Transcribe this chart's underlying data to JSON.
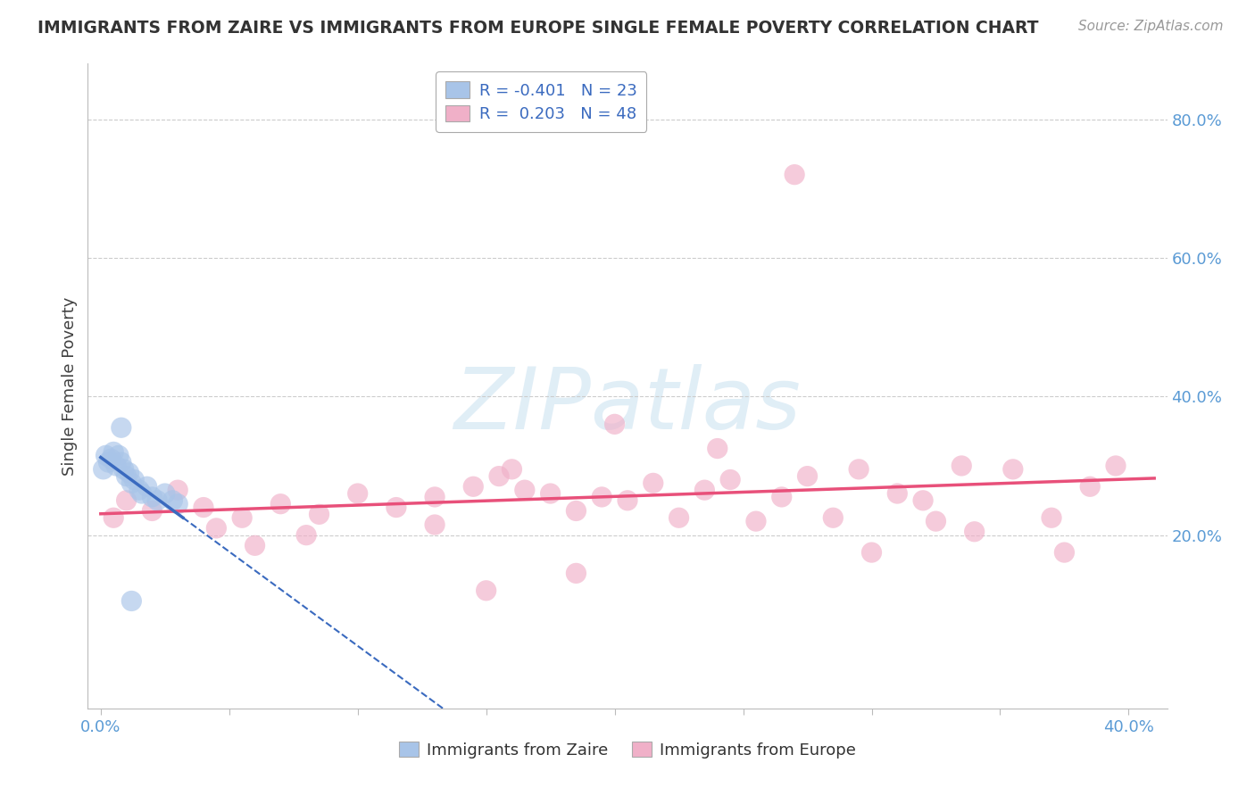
{
  "title": "IMMIGRANTS FROM ZAIRE VS IMMIGRANTS FROM EUROPE SINGLE FEMALE POVERTY CORRELATION CHART",
  "source": "Source: ZipAtlas.com",
  "ylabel": "Single Female Poverty",
  "ytick_labels": [
    "20.0%",
    "40.0%",
    "60.0%",
    "80.0%"
  ],
  "ytick_values": [
    0.2,
    0.4,
    0.6,
    0.8
  ],
  "xlim": [
    0.0,
    0.4
  ],
  "ylim": [
    0.0,
    0.88
  ],
  "zaire_color": "#a8c4e8",
  "europe_color": "#f0b0c8",
  "zaire_line_color": "#3a6abf",
  "europe_line_color": "#e8507a",
  "background_color": "#ffffff",
  "grid_color": "#cccccc",
  "zaire_x": [
    0.001,
    0.002,
    0.003,
    0.004,
    0.005,
    0.006,
    0.007,
    0.008,
    0.009,
    0.01,
    0.011,
    0.012,
    0.013,
    0.015,
    0.016,
    0.018,
    0.02,
    0.022,
    0.025,
    0.028,
    0.03,
    0.012,
    0.008
  ],
  "zaire_y": [
    0.295,
    0.315,
    0.305,
    0.31,
    0.32,
    0.3,
    0.315,
    0.305,
    0.295,
    0.285,
    0.29,
    0.275,
    0.28,
    0.265,
    0.26,
    0.27,
    0.255,
    0.25,
    0.26,
    0.25,
    0.245,
    0.105,
    0.355
  ],
  "europe_x": [
    0.005,
    0.01,
    0.02,
    0.03,
    0.04,
    0.055,
    0.07,
    0.085,
    0.1,
    0.115,
    0.13,
    0.145,
    0.155,
    0.165,
    0.175,
    0.185,
    0.195,
    0.205,
    0.215,
    0.225,
    0.235,
    0.245,
    0.255,
    0.265,
    0.275,
    0.285,
    0.295,
    0.31,
    0.325,
    0.34,
    0.355,
    0.37,
    0.385,
    0.395,
    0.27,
    0.3,
    0.32,
    0.2,
    0.24,
    0.16,
    0.13,
    0.08,
    0.06,
    0.045,
    0.185,
    0.335,
    0.375,
    0.15
  ],
  "europe_y": [
    0.225,
    0.25,
    0.235,
    0.265,
    0.24,
    0.225,
    0.245,
    0.23,
    0.26,
    0.24,
    0.255,
    0.27,
    0.285,
    0.265,
    0.26,
    0.235,
    0.255,
    0.25,
    0.275,
    0.225,
    0.265,
    0.28,
    0.22,
    0.255,
    0.285,
    0.225,
    0.295,
    0.26,
    0.22,
    0.205,
    0.295,
    0.225,
    0.27,
    0.3,
    0.72,
    0.175,
    0.25,
    0.36,
    0.325,
    0.295,
    0.215,
    0.2,
    0.185,
    0.21,
    0.145,
    0.3,
    0.175,
    0.12
  ],
  "legend_zaire_r": "-0.401",
  "legend_zaire_n": "23",
  "legend_europe_r": "0.203",
  "legend_europe_n": "48",
  "watermark": "ZIPatlas",
  "watermark_color": "#c8e0f0"
}
